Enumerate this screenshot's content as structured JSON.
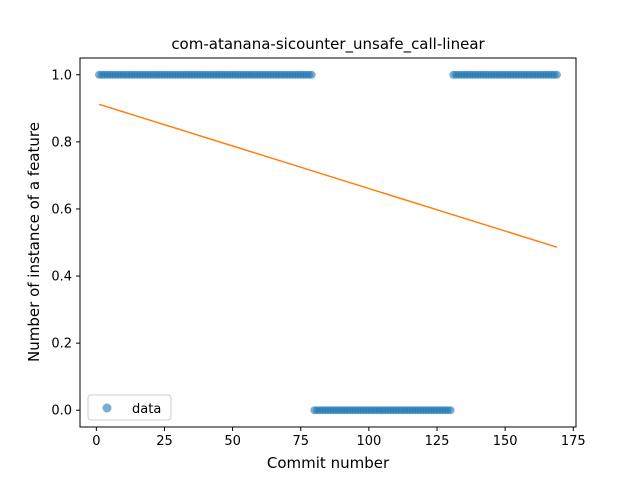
{
  "chart_data": {
    "type": "scatter",
    "title": "com-atanana-sicounter_unsafe_call-linear",
    "xlabel": "Commit number",
    "ylabel": "Number of instance of a feature",
    "xlim": [
      -6,
      176
    ],
    "ylim": [
      -0.05,
      1.05
    ],
    "xticks": [
      0,
      25,
      50,
      75,
      100,
      125,
      150,
      175
    ],
    "yticks": [
      0.0,
      0.2,
      0.4,
      0.6,
      0.8,
      1.0
    ],
    "xtick_labels": [
      "0",
      "25",
      "50",
      "75",
      "100",
      "125",
      "150",
      "175"
    ],
    "ytick_labels": [
      "0.0",
      "0.2",
      "0.4",
      "0.6",
      "0.8",
      "1.0"
    ],
    "grid": false,
    "legend_position": "lower-left",
    "series": [
      {
        "name": "data",
        "kind": "scatter",
        "color": "#1f77b4",
        "segments": [
          {
            "x_start": 1,
            "x_end": 79,
            "y": 1.0
          },
          {
            "x_start": 80,
            "x_end": 130,
            "y": 0.0
          },
          {
            "x_start": 131,
            "x_end": 169,
            "y": 1.0
          }
        ]
      },
      {
        "kind": "line",
        "color": "#ff7f0e",
        "x": [
          1,
          169
        ],
        "y": [
          0.912,
          0.486
        ]
      }
    ]
  }
}
